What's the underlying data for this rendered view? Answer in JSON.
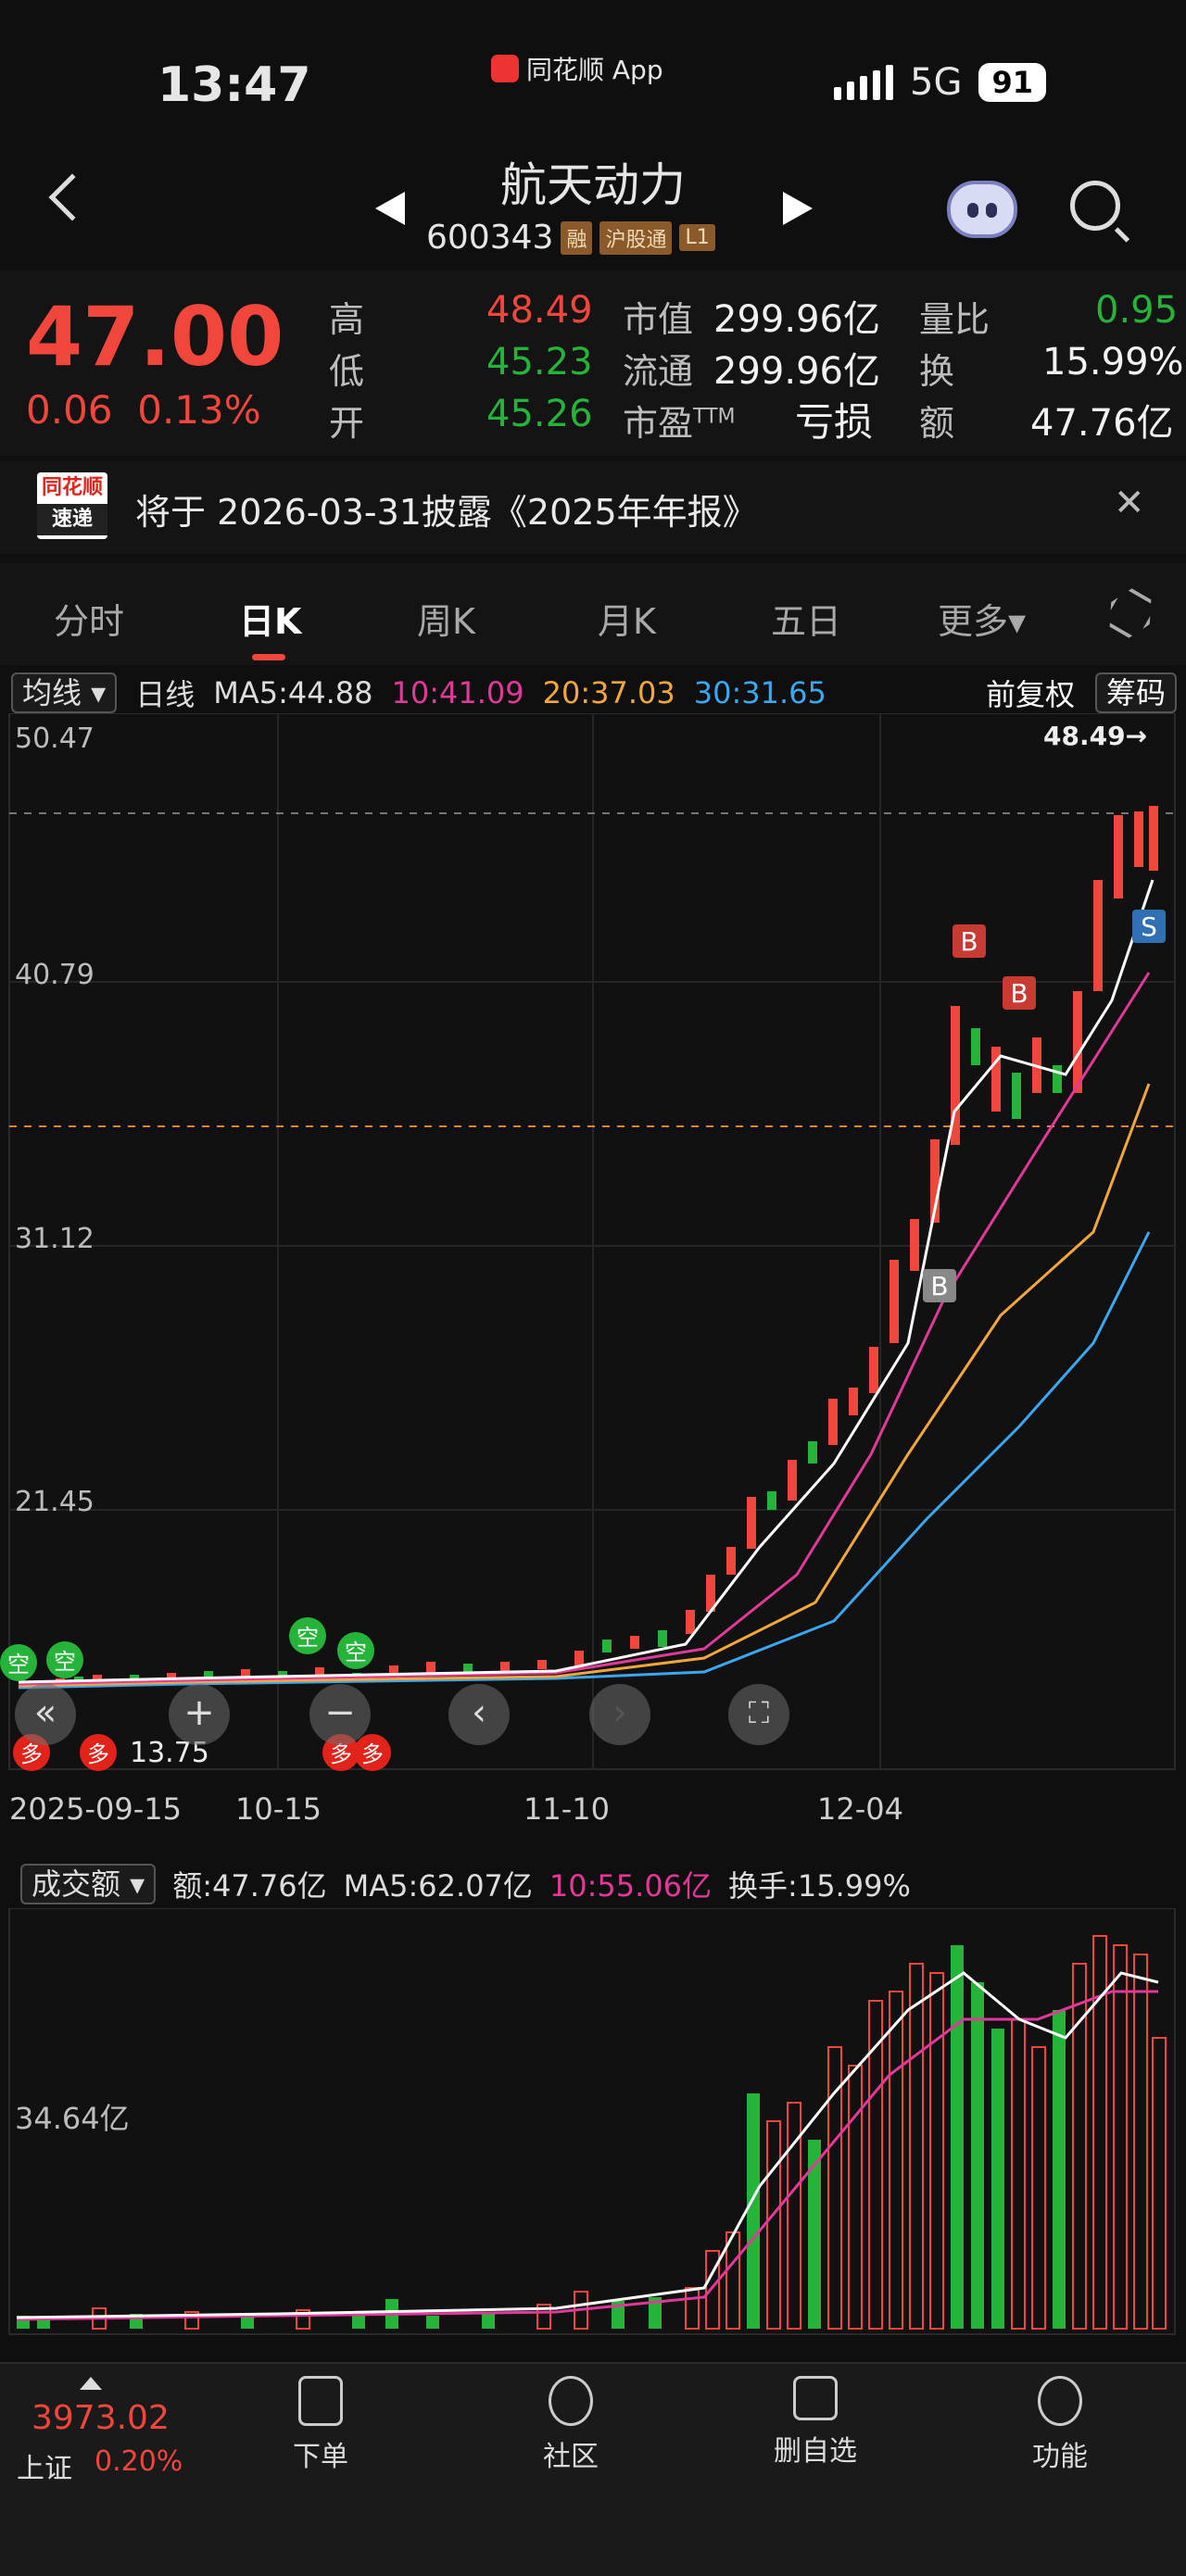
{
  "status_bar": {
    "time": "13:47",
    "app_name": "同花顺 App",
    "network": "5G",
    "battery": "91"
  },
  "header": {
    "title": "航天动力",
    "code": "600343",
    "tags": [
      "融",
      "沪股通",
      "L1"
    ]
  },
  "quote": {
    "price": "47.00",
    "change": "0.06",
    "change_pct": "0.13%",
    "high_label": "高",
    "high": "48.49",
    "low_label": "低",
    "low": "45.23",
    "open_label": "开",
    "open": "45.26",
    "mcap_label": "市值",
    "mcap": "299.96亿",
    "float_label": "流通",
    "float": "299.96亿",
    "pe_label": "市盈",
    "pe_sup": "TTM",
    "pe": "亏损",
    "vr_label": "量比",
    "vr": "0.95",
    "turnover_label": "换",
    "turnover": "15.99%",
    "amount_label": "额",
    "amount": "47.76亿"
  },
  "notice": {
    "logo_top": "同花顺",
    "logo_bottom": "速递",
    "text": "将于 2026-03-31披露《2025年年报》"
  },
  "tabs": [
    "分时",
    "日K",
    "周K",
    "月K",
    "五日",
    "更多▾"
  ],
  "ma_bar": {
    "selector": "均线 ▾",
    "period": "日线",
    "ma5": "MA5:44.88",
    "ma10": "10:41.09",
    "ma20": "20:37.03",
    "ma30": "30:31.65",
    "adjust": "前复权",
    "chips": "筹码"
  },
  "price_axis": {
    "top": "50.47",
    "l2": "40.79",
    "l3": "31.12",
    "l4": "21.45",
    "low_label": "13.75",
    "high_marker": "48.49→"
  },
  "x_axis": [
    "2025-09-15",
    "10-15",
    "11-10",
    "12-04"
  ],
  "signals": {
    "buy": "B",
    "sell": "S",
    "long": "多",
    "short": "空"
  },
  "volume_bar": {
    "selector": "成交额 ▾",
    "amount": "额:47.76亿",
    "ma5": "MA5:62.07亿",
    "ma10": "10:55.06亿",
    "turnover": "换手:15.99%",
    "axis": "34.64亿"
  },
  "bottom_nav": {
    "index_value": "3973.02",
    "index_name": "上证",
    "index_pct": "0.20%",
    "items": [
      "下单",
      "社区",
      "删自选",
      "功能"
    ]
  },
  "colors": {
    "up": "#f0463c",
    "down": "#25b33a",
    "ma5": "#ffffff",
    "ma10": "#e0399a",
    "ma20": "#f3a73a",
    "ma30": "#3aa7f0"
  }
}
